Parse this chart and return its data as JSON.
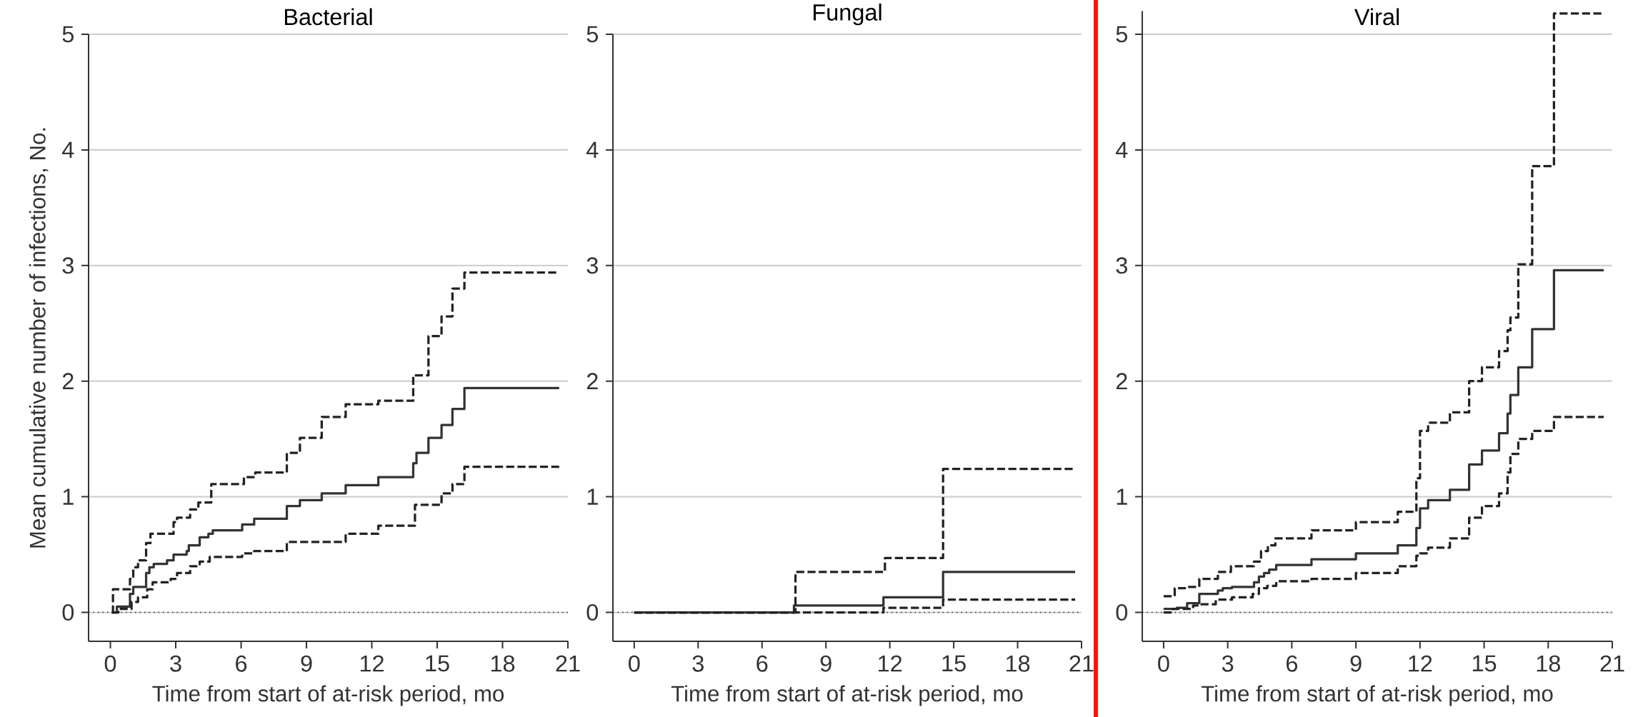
{
  "chart_data": [
    {
      "type": "step",
      "title": "Bacterial",
      "xlabel": "Time from start of at-risk period, mo",
      "ylabel": "Mean cumulative number of infections, No.",
      "xlim": [
        -1,
        21
      ],
      "ylim": [
        -0.25,
        5
      ],
      "xticks": [
        0,
        3,
        6,
        9,
        12,
        15,
        18,
        21
      ],
      "yticks": [
        0,
        1,
        2,
        3,
        4,
        5
      ],
      "grid": "y",
      "ref_lines": [
        {
          "axis": "y",
          "value": 0,
          "line_style": "dotted"
        }
      ],
      "series": [
        {
          "color": "#333333",
          "line_style": "solid",
          "x": [
            0.07,
            0.3,
            0.9,
            1.05,
            1.64,
            1.79,
            1.99,
            2.6,
            2.9,
            3.5,
            3.6,
            4.1,
            4.5,
            4.7,
            6.05,
            6.6,
            8.1,
            8.7,
            9.7,
            10.8,
            12.3,
            13.9,
            14.05,
            14.6,
            15.2,
            15.7,
            16.25,
            20.6
          ],
          "values": [
            0,
            0.05,
            0.16,
            0.22,
            0.34,
            0.39,
            0.42,
            0.45,
            0.5,
            0.53,
            0.58,
            0.65,
            0.68,
            0.71,
            0.76,
            0.81,
            0.92,
            0.97,
            1.03,
            1.1,
            1.17,
            1.29,
            1.38,
            1.51,
            1.62,
            1.76,
            1.94,
            1.94
          ]
        },
        {
          "color": "#222222",
          "line_style": "dashed",
          "x": [
            0.07,
            0.37,
            0.97,
            1.27,
            1.69,
            1.94,
            2.77,
            3.06,
            3.66,
            4.1,
            4.56,
            6.05,
            6.6,
            8.1,
            10.8,
            12.3,
            13.98,
            15.2,
            15.7,
            16.25,
            20.6
          ],
          "values": [
            0,
            0.03,
            0.09,
            0.13,
            0.2,
            0.26,
            0.29,
            0.34,
            0.4,
            0.44,
            0.48,
            0.51,
            0.53,
            0.61,
            0.68,
            0.75,
            0.93,
            1.03,
            1.11,
            1.26,
            1.26
          ]
        },
        {
          "color": "#222222",
          "line_style": "dashed",
          "x": [
            0.07,
            0.12,
            0.9,
            1.05,
            1.27,
            1.64,
            1.84,
            2.9,
            3.06,
            3.66,
            4.04,
            4.63,
            6.13,
            6.65,
            8.1,
            8.7,
            9.7,
            10.8,
            12.3,
            13.9,
            14.6,
            15.2,
            15.7,
            16.25,
            20.6
          ],
          "values": [
            0,
            0.2,
            0.29,
            0.39,
            0.45,
            0.6,
            0.68,
            0.78,
            0.82,
            0.89,
            0.95,
            1.11,
            1.17,
            1.21,
            1.38,
            1.51,
            1.69,
            1.8,
            1.83,
            2.05,
            2.39,
            2.56,
            2.8,
            2.94,
            2.94
          ]
        }
      ]
    },
    {
      "type": "step",
      "title": "Fungal",
      "xlabel": "Time from start of at-risk period, mo",
      "xlim": [
        -1,
        21
      ],
      "ylim": [
        -0.25,
        5
      ],
      "xticks": [
        0,
        3,
        6,
        9,
        12,
        15,
        18,
        21
      ],
      "yticks": [
        0,
        1,
        2,
        3,
        4,
        5
      ],
      "grid": "y",
      "ref_lines": [
        {
          "axis": "y",
          "value": 0,
          "line_style": "dotted"
        }
      ],
      "series": [
        {
          "color": "#333333",
          "line_style": "solid",
          "x": [
            0,
            7.5,
            11.7,
            14.5,
            20.7
          ],
          "values": [
            0,
            0.06,
            0.13,
            0.35,
            0.35
          ]
        },
        {
          "color": "#222222",
          "line_style": "dashed",
          "x": [
            0,
            11.7,
            14.5,
            20.7
          ],
          "values": [
            0,
            0.04,
            0.11,
            0.11
          ]
        },
        {
          "color": "#222222",
          "line_style": "dashed",
          "x": [
            0,
            7.57,
            11.77,
            14.5,
            20.7
          ],
          "values": [
            0,
            0.35,
            0.47,
            1.24,
            1.24
          ]
        }
      ]
    },
    {
      "type": "step",
      "title": "Viral",
      "xlabel": "Time from start of at-risk period, mo",
      "xlim": [
        -1,
        21
      ],
      "ylim": [
        -0.25,
        5.2
      ],
      "xticks": [
        0,
        3,
        6,
        9,
        12,
        15,
        18,
        21
      ],
      "yticks": [
        0,
        1,
        2,
        3,
        4,
        5
      ],
      "grid": "y",
      "ref_lines": [
        {
          "axis": "y",
          "value": 0,
          "line_style": "dotted"
        }
      ],
      "series": [
        {
          "color": "#333333",
          "line_style": "solid",
          "x": [
            0,
            0.62,
            1.1,
            1.67,
            2.54,
            2.77,
            3.2,
            4.23,
            4.46,
            4.7,
            4.94,
            5.27,
            6.92,
            9.0,
            10.96,
            11.83,
            12.0,
            12.38,
            13.4,
            14.3,
            14.9,
            15.7,
            16.1,
            16.23,
            16.6,
            17.25,
            18.27,
            20.6
          ],
          "values": [
            0.03,
            0.04,
            0.08,
            0.16,
            0.19,
            0.21,
            0.22,
            0.26,
            0.31,
            0.34,
            0.37,
            0.41,
            0.46,
            0.51,
            0.58,
            0.73,
            0.9,
            0.97,
            1.06,
            1.28,
            1.4,
            1.55,
            1.72,
            1.88,
            2.12,
            2.45,
            2.96,
            2.96
          ]
        },
        {
          "color": "#222222",
          "line_style": "dashed",
          "x": [
            0,
            0.42,
            1.38,
            1.67,
            2.44,
            3.2,
            4.17,
            4.46,
            4.85,
            5.27,
            6.92,
            9.0,
            10.96,
            11.83,
            12.0,
            12.38,
            13.4,
            14.3,
            14.9,
            15.7,
            16.1,
            16.23,
            16.6,
            17.25,
            18.27,
            20.6
          ],
          "values": [
            0,
            0.03,
            0.06,
            0.07,
            0.11,
            0.13,
            0.16,
            0.21,
            0.23,
            0.27,
            0.29,
            0.34,
            0.4,
            0.49,
            0.51,
            0.56,
            0.64,
            0.82,
            0.92,
            1.03,
            1.21,
            1.37,
            1.5,
            1.57,
            1.69,
            1.69
          ]
        },
        {
          "color": "#222222",
          "line_style": "dashed",
          "x": [
            0,
            0.52,
            1.0,
            1.67,
            2.54,
            3.15,
            4.23,
            4.56,
            4.88,
            5.23,
            6.92,
            9.0,
            10.96,
            11.83,
            12.0,
            12.38,
            13.4,
            14.3,
            14.9,
            15.7,
            16.1,
            16.23,
            16.6,
            17.25,
            18.27,
            20.6
          ],
          "values": [
            0.14,
            0.21,
            0.22,
            0.29,
            0.35,
            0.4,
            0.44,
            0.53,
            0.58,
            0.64,
            0.71,
            0.78,
            0.87,
            1.16,
            1.57,
            1.64,
            1.73,
            2.0,
            2.12,
            2.26,
            2.44,
            2.55,
            3.01,
            3.86,
            5.18,
            5.18
          ]
        }
      ]
    }
  ]
}
